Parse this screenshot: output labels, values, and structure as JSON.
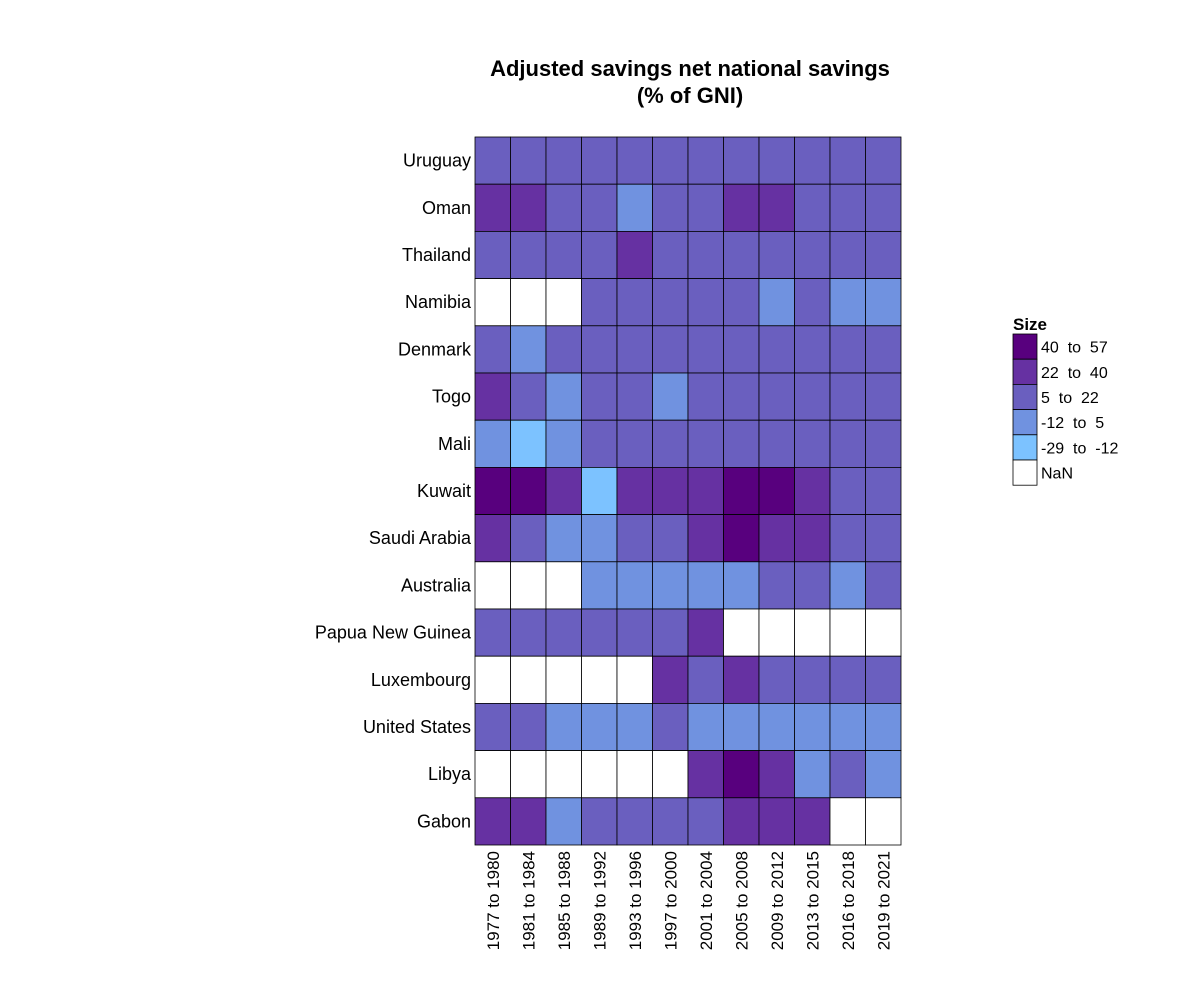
{
  "chart_data": {
    "type": "heatmap",
    "title": "Adjusted savings net national savings (% of GNI)",
    "title_lines": [
      "Adjusted savings net national savings",
      "(% of GNI)"
    ],
    "rows": [
      "Uruguay",
      "Oman",
      "Thailand",
      "Namibia",
      "Denmark",
      "Togo",
      "Mali",
      "Kuwait",
      "Saudi Arabia",
      "Australia",
      "Papua New Guinea",
      "Luxembourg",
      "United States",
      "Libya",
      "Gabon"
    ],
    "columns": [
      "1977 to 1980",
      "1981 to 1984",
      "1985 to 1988",
      "1989 to 1992",
      "1993 to 1996",
      "1997 to 2000",
      "2001 to 2004",
      "2005 to 2008",
      "2009 to 2012",
      "2013 to 2015",
      "2016 to 2018",
      "2019 to 2021"
    ],
    "value_kind": "bin index (0 = NaN, 1 = -29 to -12, 2 = -12 to 5, 3 = 5 to 22, 4 = 22 to 40, 5 = 40 to 57)",
    "values": [
      [
        3,
        3,
        3,
        3,
        3,
        3,
        3,
        3,
        3,
        3,
        3,
        3
      ],
      [
        4,
        4,
        3,
        3,
        2,
        3,
        3,
        4,
        4,
        3,
        3,
        3
      ],
      [
        3,
        3,
        3,
        3,
        4,
        3,
        3,
        3,
        3,
        3,
        3,
        3
      ],
      [
        0,
        0,
        0,
        3,
        3,
        3,
        3,
        3,
        2,
        3,
        2,
        2
      ],
      [
        3,
        2,
        3,
        3,
        3,
        3,
        3,
        3,
        3,
        3,
        3,
        3
      ],
      [
        4,
        3,
        2,
        3,
        3,
        2,
        3,
        3,
        3,
        3,
        3,
        3
      ],
      [
        2,
        1,
        2,
        3,
        3,
        3,
        3,
        3,
        3,
        3,
        3,
        3
      ],
      [
        5,
        5,
        4,
        1,
        4,
        4,
        4,
        5,
        5,
        4,
        3,
        3
      ],
      [
        4,
        3,
        2,
        2,
        3,
        3,
        4,
        5,
        4,
        4,
        3,
        3
      ],
      [
        0,
        0,
        0,
        2,
        2,
        2,
        2,
        2,
        3,
        3,
        2,
        3
      ],
      [
        3,
        3,
        3,
        3,
        3,
        3,
        4,
        0,
        0,
        0,
        0,
        0
      ],
      [
        0,
        0,
        0,
        0,
        0,
        4,
        3,
        4,
        3,
        3,
        3,
        3
      ],
      [
        3,
        3,
        2,
        2,
        2,
        3,
        2,
        2,
        2,
        2,
        2,
        2
      ],
      [
        0,
        0,
        0,
        0,
        0,
        0,
        4,
        5,
        4,
        2,
        3,
        2
      ],
      [
        4,
        4,
        2,
        3,
        3,
        3,
        3,
        4,
        4,
        4,
        0,
        0
      ]
    ],
    "legend": {
      "title": "Size",
      "placement": "right",
      "items": [
        {
          "label": "40  to  57",
          "color": "#58007e"
        },
        {
          "label": "22  to  40",
          "color": "#6631a2"
        },
        {
          "label": "5  to  22",
          "color": "#6a5fbf"
        },
        {
          "label": "-12  to  5",
          "color": "#7092e0"
        },
        {
          "label": "-29  to  -12",
          "color": "#7cc2ff"
        },
        {
          "label": "NaN",
          "color": "#ffffff"
        }
      ]
    },
    "bin_colors": [
      "#ffffff",
      "#7cc2ff",
      "#7092e0",
      "#6a5fbf",
      "#6631a2",
      "#58007e"
    ],
    "grid": true
  }
}
